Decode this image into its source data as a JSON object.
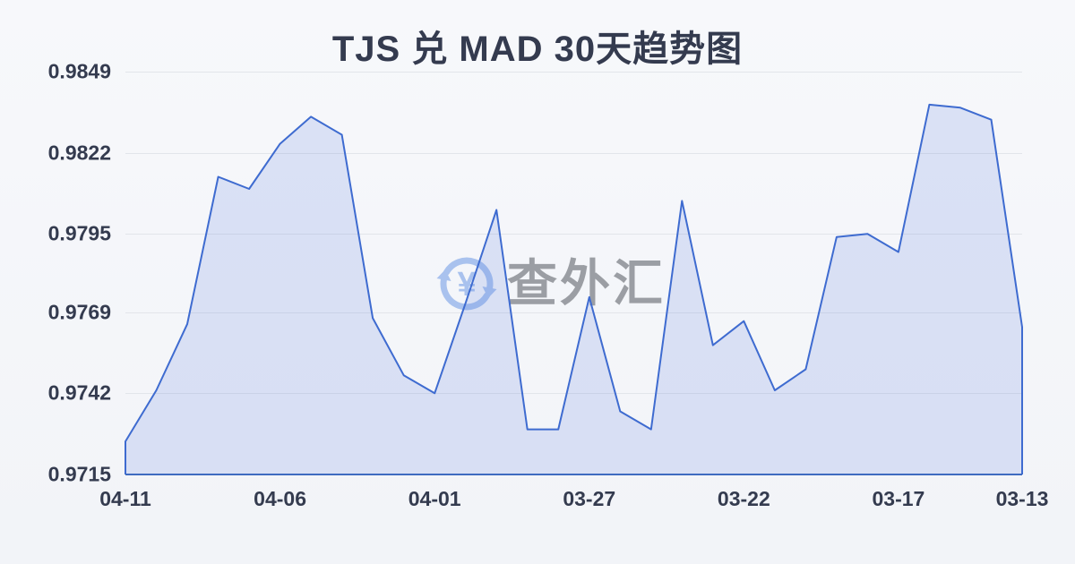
{
  "title": "TJS 兑 MAD 30天趋势图",
  "watermark": {
    "text": "查外汇",
    "icon": "currency-exchange-icon",
    "currency_symbol": "¥"
  },
  "colors": {
    "background": "#f4f6f9",
    "title_text": "#343b4f",
    "tick_text": "#343b4f",
    "line": "#3e6bd0",
    "area_fill": "rgba(92,128,220,0.18)",
    "axis": "#3e6bc0",
    "grid": "#e2e5ea",
    "watermark_icon": "#a9c2ee",
    "watermark_text": "#9b9ea4"
  },
  "chart_data": {
    "type": "area",
    "title": "TJS 兑 MAD 30天趋势图",
    "xlabel": "",
    "ylabel": "",
    "grid": true,
    "legend_position": "none",
    "ylim": [
      0.9715,
      0.9849
    ],
    "x": [
      "04-11",
      "04-10",
      "04-09",
      "04-08",
      "04-07",
      "04-06",
      "04-05",
      "04-04",
      "04-03",
      "04-02",
      "04-01",
      "03-31",
      "03-30",
      "03-29",
      "03-28",
      "03-27",
      "03-26",
      "03-25",
      "03-24",
      "03-23",
      "03-22",
      "03-21",
      "03-20",
      "03-19",
      "03-18",
      "03-17",
      "03-16",
      "03-15",
      "03-14",
      "03-13"
    ],
    "values": [
      0.9726,
      0.9743,
      0.9765,
      0.9814,
      0.981,
      0.9825,
      0.9834,
      0.9828,
      0.9767,
      0.9748,
      0.9742,
      0.9772,
      0.9803,
      0.973,
      0.973,
      0.9774,
      0.9736,
      0.973,
      0.9806,
      0.9758,
      0.9766,
      0.9743,
      0.975,
      0.9794,
      0.9795,
      0.9789,
      0.9838,
      0.9837,
      0.9833,
      0.9764
    ],
    "x_ticks": [
      "04-11",
      "04-06",
      "04-01",
      "03-27",
      "03-22",
      "03-17",
      "03-13"
    ],
    "y_ticks": [
      "0.9849",
      "0.9822",
      "0.9795",
      "0.9769",
      "0.9742",
      "0.9715"
    ]
  }
}
